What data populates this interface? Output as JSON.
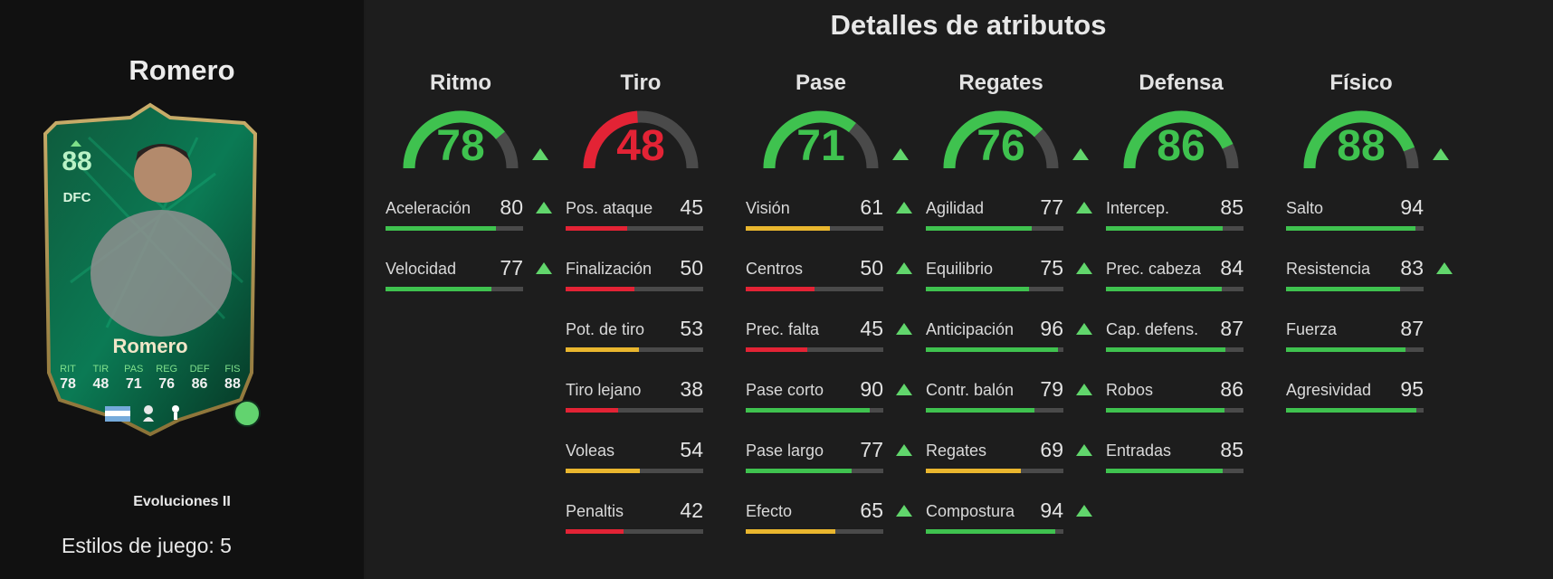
{
  "left": {
    "player_name": "Romero",
    "program": "Evoluciones II",
    "playstyles": "Estilos de juego: 5"
  },
  "card": {
    "rating": "88",
    "position": "DFC",
    "name": "Romero",
    "stats": [
      {
        "label": "RIT",
        "value": "78"
      },
      {
        "label": "TIR",
        "value": "48"
      },
      {
        "label": "PAS",
        "value": "71"
      },
      {
        "label": "REG",
        "value": "76"
      },
      {
        "label": "DEF",
        "value": "86"
      },
      {
        "label": "FIS",
        "value": "88"
      }
    ]
  },
  "main": {
    "title": "Detalles de atributos",
    "categories": [
      {
        "name": "Ritmo",
        "value": 78,
        "arrow": true,
        "attrs": [
          {
            "label": "Aceleración",
            "value": 80,
            "arrow": true
          },
          {
            "label": "Velocidad",
            "value": 77,
            "arrow": true
          }
        ]
      },
      {
        "name": "Tiro",
        "value": 48,
        "arrow": false,
        "attrs": [
          {
            "label": "Pos. ataque",
            "value": 45,
            "arrow": false
          },
          {
            "label": "Finalización",
            "value": 50,
            "arrow": false
          },
          {
            "label": "Pot. de tiro",
            "value": 53,
            "arrow": false
          },
          {
            "label": "Tiro lejano",
            "value": 38,
            "arrow": false
          },
          {
            "label": "Voleas",
            "value": 54,
            "arrow": false
          },
          {
            "label": "Penaltis",
            "value": 42,
            "arrow": false
          }
        ]
      },
      {
        "name": "Pase",
        "value": 71,
        "arrow": true,
        "attrs": [
          {
            "label": "Visión",
            "value": 61,
            "arrow": true
          },
          {
            "label": "Centros",
            "value": 50,
            "arrow": true
          },
          {
            "label": "Prec. falta",
            "value": 45,
            "arrow": true
          },
          {
            "label": "Pase corto",
            "value": 90,
            "arrow": true
          },
          {
            "label": "Pase largo",
            "value": 77,
            "arrow": true
          },
          {
            "label": "Efecto",
            "value": 65,
            "arrow": true
          }
        ]
      },
      {
        "name": "Regates",
        "value": 76,
        "arrow": true,
        "attrs": [
          {
            "label": "Agilidad",
            "value": 77,
            "arrow": true
          },
          {
            "label": "Equilibrio",
            "value": 75,
            "arrow": true
          },
          {
            "label": "Anticipación",
            "value": 96,
            "arrow": true
          },
          {
            "label": "Contr. balón",
            "value": 79,
            "arrow": true
          },
          {
            "label": "Regates",
            "value": 69,
            "arrow": true
          },
          {
            "label": "Compostura",
            "value": 94,
            "arrow": true
          }
        ]
      },
      {
        "name": "Defensa",
        "value": 86,
        "arrow": false,
        "attrs": [
          {
            "label": "Intercep.",
            "value": 85,
            "arrow": false
          },
          {
            "label": "Prec. cabeza",
            "value": 84,
            "arrow": false
          },
          {
            "label": "Cap. defens.",
            "value": 87,
            "arrow": false
          },
          {
            "label": "Robos",
            "value": 86,
            "arrow": false
          },
          {
            "label": "Entradas",
            "value": 85,
            "arrow": false
          }
        ]
      },
      {
        "name": "Físico",
        "value": 88,
        "arrow": true,
        "attrs": [
          {
            "label": "Salto",
            "value": 94,
            "arrow": false
          },
          {
            "label": "Resistencia",
            "value": 83,
            "arrow": true
          },
          {
            "label": "Fuerza",
            "value": 87,
            "arrow": false
          },
          {
            "label": "Agresividad",
            "value": 95,
            "arrow": false
          }
        ]
      }
    ]
  },
  "colors": {
    "high": "#3fc24f",
    "mid": "#e9b62e",
    "low": "#e32335",
    "track": "#4a4a4a",
    "arrow": "#61d66c"
  }
}
